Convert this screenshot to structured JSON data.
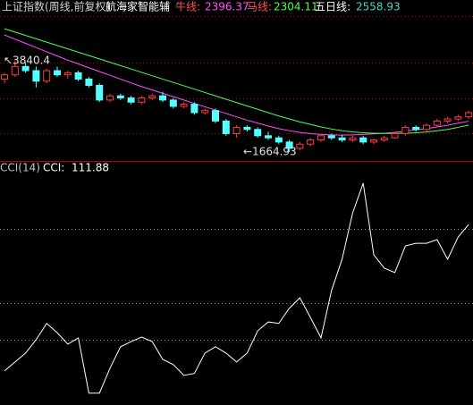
{
  "chart_data": [
    {
      "type": "candlestick",
      "title": "上证指数(周线,前复权)",
      "subtitle": "航海家智能辅",
      "up_color": "#ff3c3c",
      "down_color": "#54ffff",
      "open": [
        3400,
        3500,
        3700,
        3600,
        3350,
        3600,
        3500,
        3550,
        3400,
        3250,
        2900,
        3000,
        2950,
        2850,
        2950,
        3000,
        2900,
        2750,
        2800,
        2600,
        2650,
        2400,
        2100,
        2250,
        2200,
        2050,
        2000,
        1900,
        1750,
        1850,
        1950,
        2050,
        2000,
        1950,
        2000,
        1900,
        1950,
        2000,
        2100,
        2250,
        2200,
        2300,
        2400,
        2450,
        2500
      ],
      "high": [
        3550,
        3840.4,
        3800,
        3700,
        3650,
        3700,
        3600,
        3600,
        3450,
        3300,
        3050,
        3050,
        3000,
        3000,
        3050,
        3100,
        2950,
        2850,
        2850,
        2700,
        2700,
        2450,
        2300,
        2300,
        2250,
        2150,
        2050,
        1950,
        1900,
        2000,
        2100,
        2100,
        2080,
        2050,
        2050,
        1980,
        2050,
        2150,
        2300,
        2300,
        2350,
        2450,
        2500,
        2550,
        2650
      ],
      "low": [
        3300,
        3450,
        3550,
        3200,
        3300,
        3450,
        3400,
        3350,
        3200,
        2850,
        2850,
        2900,
        2800,
        2800,
        2900,
        2850,
        2700,
        2700,
        2550,
        2550,
        2350,
        2050,
        2000,
        2150,
        2000,
        1950,
        1850,
        1664.93,
        1700,
        1800,
        1900,
        1950,
        1900,
        1900,
        1850,
        1850,
        1900,
        1980,
        2050,
        2150,
        2150,
        2250,
        2350,
        2400,
        2450
      ],
      "close": [
        3500,
        3700,
        3600,
        3350,
        3600,
        3500,
        3550,
        3400,
        3250,
        2900,
        3000,
        2950,
        2850,
        2950,
        3000,
        2900,
        2750,
        2800,
        2600,
        2650,
        2400,
        2100,
        2250,
        2200,
        2050,
        2000,
        1900,
        1750,
        1850,
        1950,
        2050,
        2000,
        1950,
        2000,
        1900,
        1950,
        2000,
        2100,
        2250,
        2200,
        2300,
        2400,
        2450,
        2500,
        2600
      ],
      "series": [
        {
          "name": "牛线:",
          "color": "#ff50ff",
          "current": 2396.37,
          "values": [
            4450,
            4350,
            4250,
            4150,
            4050,
            3950,
            3850,
            3760,
            3670,
            3580,
            3490,
            3400,
            3310,
            3220,
            3140,
            3060,
            2980,
            2900,
            2820,
            2740,
            2660,
            2580,
            2500,
            2420,
            2350,
            2280,
            2220,
            2170,
            2130,
            2100,
            2080,
            2070,
            2065,
            2070,
            2080,
            2095,
            2110,
            2130,
            2160,
            2190,
            2220,
            2260,
            2300,
            2350,
            2396.37
          ]
        },
        {
          "name": "马线:",
          "color": "#50ff50",
          "current": 2304.11,
          "values": [
            4600,
            4520,
            4440,
            4360,
            4280,
            4200,
            4120,
            4040,
            3960,
            3880,
            3800,
            3720,
            3640,
            3560,
            3480,
            3400,
            3320,
            3240,
            3160,
            3080,
            3000,
            2920,
            2840,
            2760,
            2680,
            2600,
            2520,
            2450,
            2380,
            2320,
            2260,
            2210,
            2170,
            2140,
            2120,
            2110,
            2105,
            2105,
            2110,
            2120,
            2140,
            2170,
            2200,
            2250,
            2304.11
          ]
        },
        {
          "name": "五日线:",
          "color": "#50d0d0",
          "current": 2558.93
        }
      ],
      "annotations": [
        "↖3840.4",
        "←1664.93"
      ],
      "ylim": [
        1450,
        4900
      ],
      "yticks": [
        2100,
        2950,
        3800
      ],
      "grid": true
    },
    {
      "type": "line",
      "title": "CCI(14)",
      "series": [
        {
          "name": "CCI:",
          "color": "#ffffff",
          "current": 111.88,
          "values": [
            -283,
            -259,
            -235,
            -199,
            -155,
            -180,
            -211,
            -194,
            -343,
            -343,
            -276,
            -218,
            -204,
            -192,
            -204,
            -252,
            -266,
            -295,
            -290,
            -235,
            -218,
            -235,
            -259,
            -235,
            -175,
            -151,
            -155,
            -114,
            -86,
            -139,
            -194,
            -66,
            18,
            143,
            223,
            30,
            -6,
            -18,
            54,
            61,
            61,
            71,
            18,
            78,
            111.88
          ]
        }
      ],
      "ylim": [
        -375,
        271
      ],
      "yticks": [
        -200,
        -100,
        100
      ],
      "grid": true
    }
  ]
}
